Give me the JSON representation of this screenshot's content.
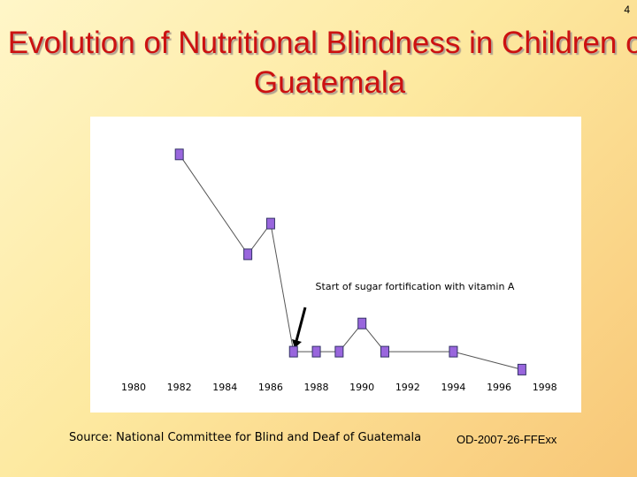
{
  "chart_data": {
    "type": "line",
    "title": "Evolution of Nutritional  Blindness in Children of Guatemala",
    "annotation": "Start of sugar fortification with vitamin A",
    "source": "Source: National Committee for Blind and Deaf of Guatemala",
    "code": "OD-2007-26-FFExx",
    "page_number": "4",
    "x": [
      1982,
      1985,
      1986,
      1987,
      1988,
      1989,
      1990,
      1991,
      1994,
      1997
    ],
    "series": [
      {
        "color": "#9966dd",
        "values": [
          88,
          49,
          61,
          11,
          11,
          11,
          22,
          11,
          11,
          4
        ]
      }
    ],
    "xlim": [
      1978.1,
      1999.6
    ],
    "xticks": [
      1980,
      1982,
      1984,
      1986,
      1988,
      1990,
      1992,
      1994,
      1996,
      1998
    ],
    "ylim": [
      0,
      100
    ]
  }
}
